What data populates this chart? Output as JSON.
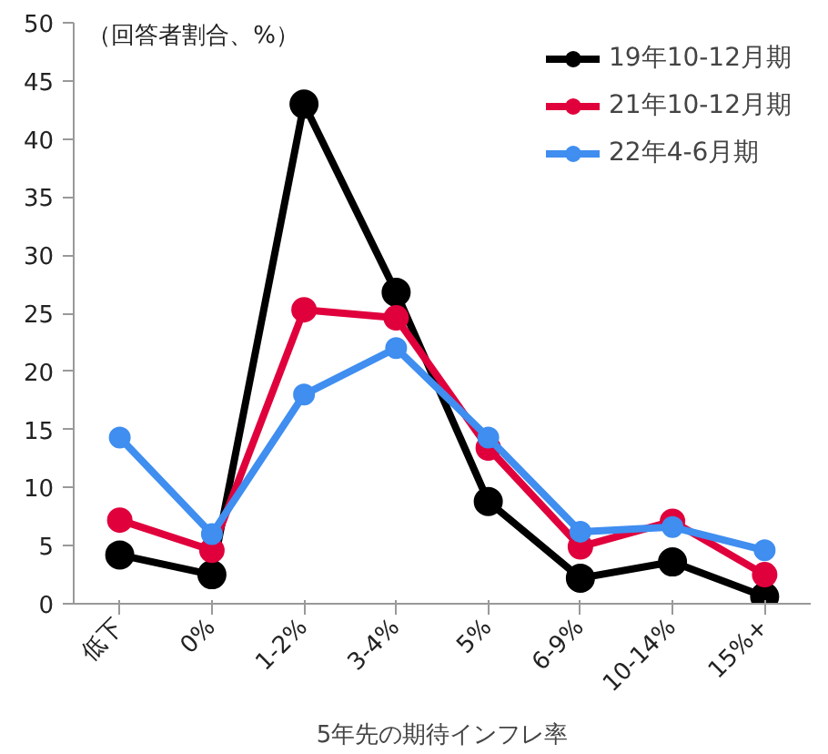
{
  "chart_data": {
    "type": "line",
    "ylabel": "（回答者割合、%）",
    "xlabel": "5年先の期待インフレ率",
    "categories": [
      "低下",
      "0%",
      "1-2%",
      "3-4%",
      "5%",
      "6-9%",
      "10-14%",
      "15%+"
    ],
    "series": [
      {
        "name": "19年10-12月期",
        "color": "#000000",
        "values": [
          4.2,
          2.5,
          43,
          26.8,
          8.8,
          2.2,
          3.6,
          0.6
        ]
      },
      {
        "name": "21年10-12月期",
        "color": "#e0003c",
        "values": [
          7.2,
          4.6,
          25.3,
          24.6,
          13.4,
          4.9,
          7.1,
          2.5
        ]
      },
      {
        "name": "22年4-6月期",
        "color": "#3f8ef0",
        "values": [
          14.3,
          6.0,
          18,
          22,
          14.3,
          6.2,
          6.6,
          4.6
        ]
      }
    ],
    "ylim": [
      0,
      50
    ],
    "yticks": [
      0,
      5,
      10,
      15,
      20,
      25,
      30,
      35,
      40,
      45,
      50
    ],
    "grid": false,
    "legend": "top right",
    "marker": "circle",
    "line_style": "solid"
  }
}
